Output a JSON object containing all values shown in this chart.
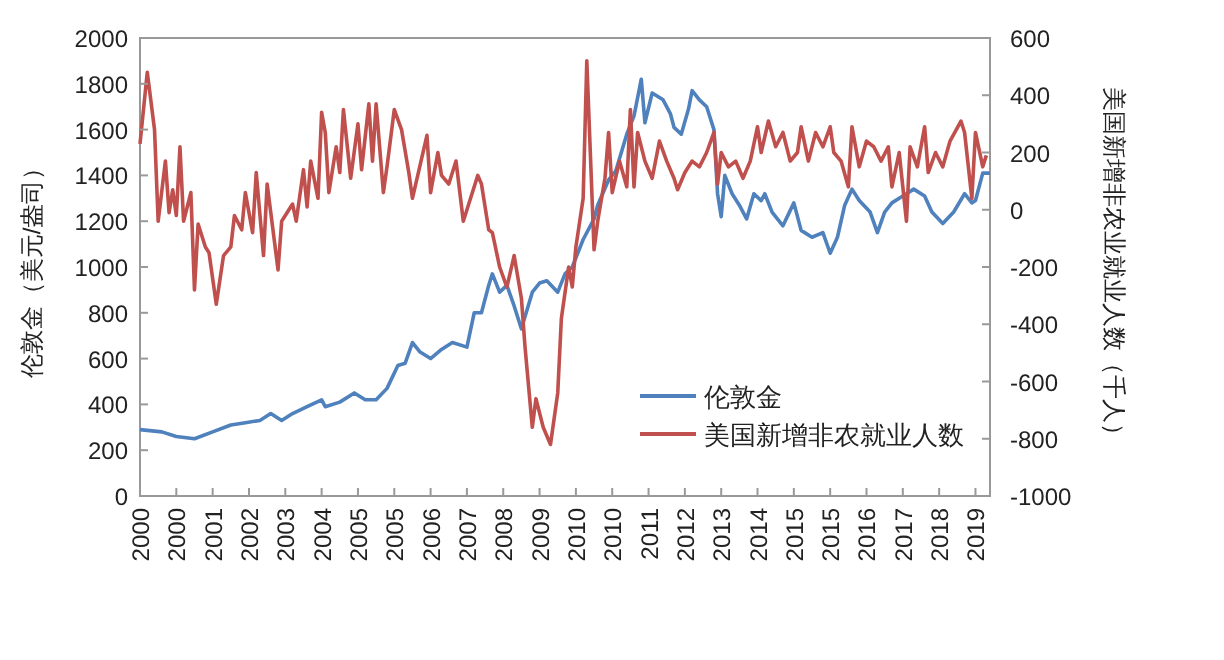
{
  "chart_data": {
    "type": "line",
    "ylabel": "伦敦金（美元/盎司）",
    "y2label": "美国新增非农业就业人数（千人）",
    "xlim": [
      "2000-01",
      "2019-07"
    ],
    "xticks": [
      {
        "value": "2000-01",
        "label": "2000"
      },
      {
        "value": "2000-11",
        "label": "2000"
      },
      {
        "value": "2001-09",
        "label": "2001"
      },
      {
        "value": "2002-07",
        "label": "2002"
      },
      {
        "value": "2003-05",
        "label": "2003"
      },
      {
        "value": "2004-03",
        "label": "2004"
      },
      {
        "value": "2005-01",
        "label": "2005"
      },
      {
        "value": "2005-11",
        "label": "2005"
      },
      {
        "value": "2006-09",
        "label": "2006"
      },
      {
        "value": "2007-07",
        "label": "2007"
      },
      {
        "value": "2008-05",
        "label": "2008"
      },
      {
        "value": "2009-03",
        "label": "2009"
      },
      {
        "value": "2010-01",
        "label": "2010"
      },
      {
        "value": "2010-11",
        "label": "2010"
      },
      {
        "value": "2011-09",
        "label": "2011"
      },
      {
        "value": "2012-07",
        "label": "2012"
      },
      {
        "value": "2013-05",
        "label": "2013"
      },
      {
        "value": "2014-03",
        "label": "2014"
      },
      {
        "value": "2015-01",
        "label": "2015"
      },
      {
        "value": "2015-11",
        "label": "2015"
      },
      {
        "value": "2016-09",
        "label": "2016"
      },
      {
        "value": "2017-07",
        "label": "2017"
      },
      {
        "value": "2018-05",
        "label": "2018"
      },
      {
        "value": "2019-03",
        "label": "2019"
      }
    ],
    "ylim": [
      0,
      2000
    ],
    "yticks": [
      0,
      200,
      400,
      600,
      800,
      1000,
      1200,
      1400,
      1600,
      1800,
      2000
    ],
    "y2lim": [
      -1000,
      600
    ],
    "y2ticks": [
      -1000,
      -800,
      -600,
      -400,
      -200,
      0,
      200,
      400,
      600
    ],
    "legend": "bottom right",
    "series": [
      {
        "name": "伦敦金",
        "color": "#4f81bd",
        "x": [
          "2000-01",
          "2000-07",
          "2000-11",
          "2001-04",
          "2001-09",
          "2002-02",
          "2002-06",
          "2002-10",
          "2003-01",
          "2003-04",
          "2003-07",
          "2003-11",
          "2004-03",
          "2004-04",
          "2004-08",
          "2004-12",
          "2005-03",
          "2005-06",
          "2005-09",
          "2005-12",
          "2006-02",
          "2006-04",
          "2006-06",
          "2006-09",
          "2006-12",
          "2007-03",
          "2007-07",
          "2007-09",
          "2007-11",
          "2008-01",
          "2008-02",
          "2008-04",
          "2008-06",
          "2008-08",
          "2008-10",
          "2009-01",
          "2009-03",
          "2009-05",
          "2009-08",
          "2009-10",
          "2009-12",
          "2010-03",
          "2010-06",
          "2010-07",
          "2010-10",
          "2010-12",
          "2011-03",
          "2011-05",
          "2011-07",
          "2011-08",
          "2011-10",
          "2012-01",
          "2012-03",
          "2012-04",
          "2012-06",
          "2012-08",
          "2012-09",
          "2012-11",
          "2013-01",
          "2013-03",
          "2013-04",
          "2013-05",
          "2013-06",
          "2013-08",
          "2013-10",
          "2013-12",
          "2014-02",
          "2014-04",
          "2014-05",
          "2014-07",
          "2014-10",
          "2015-01",
          "2015-03",
          "2015-06",
          "2015-09",
          "2015-11",
          "2016-01",
          "2016-03",
          "2016-05",
          "2016-07",
          "2016-10",
          "2016-12",
          "2017-02",
          "2017-04",
          "2017-07",
          "2017-10",
          "2018-01",
          "2018-03",
          "2018-06",
          "2018-09",
          "2018-12",
          "2019-02",
          "2019-03",
          "2019-05",
          "2019-07"
        ],
        "values": [
          290,
          280,
          260,
          250,
          280,
          310,
          320,
          330,
          360,
          330,
          360,
          390,
          420,
          390,
          410,
          450,
          420,
          420,
          470,
          570,
          580,
          670,
          630,
          600,
          640,
          670,
          650,
          800,
          800,
          920,
          970,
          890,
          920,
          830,
          730,
          890,
          930,
          940,
          890,
          970,
          1000,
          1120,
          1210,
          1270,
          1380,
          1420,
          1580,
          1660,
          1820,
          1630,
          1760,
          1730,
          1670,
          1610,
          1580,
          1690,
          1770,
          1730,
          1700,
          1600,
          1320,
          1220,
          1400,
          1320,
          1270,
          1210,
          1320,
          1290,
          1320,
          1240,
          1180,
          1280,
          1160,
          1130,
          1150,
          1060,
          1130,
          1270,
          1340,
          1290,
          1240,
          1150,
          1240,
          1280,
          1310,
          1340,
          1310,
          1240,
          1190,
          1240,
          1320,
          1280,
          1290,
          1410,
          1410
        ]
      },
      {
        "name": "美国新增非农就业人数",
        "color": "#c0504d",
        "axis": "y2",
        "x": [
          "2000-01",
          "2000-03",
          "2000-05",
          "2000-06",
          "2000-08",
          "2000-09",
          "2000-10",
          "2000-11",
          "2000-12",
          "2001-01",
          "2001-03",
          "2001-04",
          "2001-05",
          "2001-07",
          "2001-08",
          "2001-10",
          "2001-12",
          "2002-02",
          "2002-03",
          "2002-05",
          "2002-06",
          "2002-08",
          "2002-09",
          "2002-11",
          "2002-12",
          "2003-03",
          "2003-04",
          "2003-07",
          "2003-08",
          "2003-10",
          "2003-11",
          "2003-12",
          "2004-02",
          "2004-03",
          "2004-04",
          "2004-05",
          "2004-07",
          "2004-08",
          "2004-09",
          "2004-11",
          "2005-01",
          "2005-02",
          "2005-04",
          "2005-05",
          "2005-06",
          "2005-08",
          "2005-09",
          "2005-11",
          "2006-01",
          "2006-03",
          "2006-04",
          "2006-06",
          "2006-08",
          "2006-09",
          "2006-11",
          "2006-12",
          "2007-02",
          "2007-04",
          "2007-06",
          "2007-08",
          "2007-10",
          "2007-11",
          "2008-01",
          "2008-02",
          "2008-04",
          "2008-06",
          "2008-08",
          "2008-10",
          "2008-11",
          "2009-01",
          "2009-02",
          "2009-04",
          "2009-06",
          "2009-08",
          "2009-09",
          "2009-11",
          "2009-12",
          "2010-01",
          "2010-03",
          "2010-04",
          "2010-06",
          "2010-07",
          "2010-09",
          "2010-10",
          "2010-11",
          "2011-01",
          "2011-03",
          "2011-04",
          "2011-05",
          "2011-06",
          "2011-08",
          "2011-10",
          "2011-12",
          "2012-02",
          "2012-04",
          "2012-05",
          "2012-07",
          "2012-09",
          "2012-11",
          "2013-01",
          "2013-03",
          "2013-04",
          "2013-05",
          "2013-07",
          "2013-09",
          "2013-11",
          "2014-01",
          "2014-03",
          "2014-04",
          "2014-06",
          "2014-08",
          "2014-10",
          "2014-12",
          "2015-02",
          "2015-03",
          "2015-05",
          "2015-07",
          "2015-09",
          "2015-11",
          "2015-12",
          "2016-02",
          "2016-04",
          "2016-05",
          "2016-07",
          "2016-09",
          "2016-11",
          "2017-01",
          "2017-03",
          "2017-04",
          "2017-06",
          "2017-08",
          "2017-09",
          "2017-11",
          "2018-01",
          "2018-02",
          "2018-04",
          "2018-06",
          "2018-08",
          "2018-11",
          "2018-12",
          "2019-02",
          "2019-03",
          "2019-05",
          "2019-06"
        ],
        "values": [
          230,
          480,
          280,
          -40,
          170,
          -10,
          70,
          -20,
          220,
          -40,
          60,
          -280,
          -50,
          -130,
          -150,
          -330,
          -160,
          -130,
          -20,
          -70,
          60,
          -80,
          130,
          -160,
          90,
          -210,
          -40,
          20,
          -40,
          140,
          10,
          170,
          40,
          340,
          270,
          60,
          220,
          130,
          350,
          110,
          300,
          140,
          370,
          170,
          370,
          60,
          150,
          350,
          280,
          130,
          40,
          150,
          260,
          60,
          200,
          120,
          90,
          170,
          -40,
          40,
          120,
          90,
          -70,
          -80,
          -200,
          -270,
          -160,
          -310,
          -480,
          -760,
          -660,
          -760,
          -820,
          -640,
          -380,
          -200,
          -270,
          -130,
          40,
          520,
          -140,
          -40,
          110,
          270,
          60,
          170,
          80,
          350,
          80,
          270,
          170,
          110,
          240,
          170,
          110,
          70,
          130,
          170,
          150,
          200,
          270,
          90,
          200,
          150,
          170,
          110,
          170,
          290,
          200,
          310,
          220,
          270,
          170,
          200,
          290,
          170,
          270,
          220,
          290,
          200,
          170,
          80,
          290,
          150,
          240,
          220,
          170,
          220,
          80,
          200,
          -40,
          220,
          150,
          290,
          130,
          200,
          150,
          240,
          310,
          270,
          40,
          270,
          150,
          190
        ]
      }
    ]
  }
}
